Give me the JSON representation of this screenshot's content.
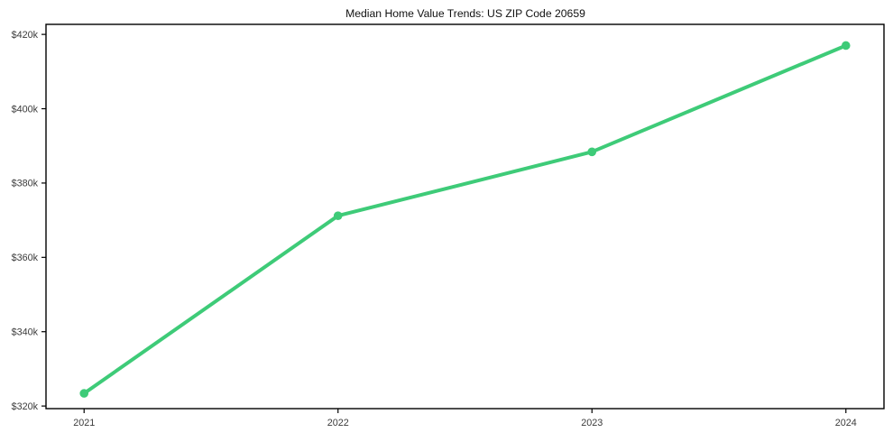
{
  "page": {
    "background_color": "#ffffff"
  },
  "chart_data": {
    "type": "line",
    "title": "Median Home Value Trends: US ZIP Code 20659",
    "xlabel": "",
    "ylabel": "",
    "x": [
      2021,
      2022,
      2023,
      2024
    ],
    "x_tick_labels": [
      "2021",
      "2022",
      "2023",
      "2024"
    ],
    "values": [
      323400,
      371200,
      388400,
      417000
    ],
    "y_tick_values": [
      320000,
      340000,
      360000,
      380000,
      400000,
      420000
    ],
    "y_tick_labels": [
      "$320k",
      "$340k",
      "$360k",
      "$380k",
      "$400k",
      "$420k"
    ],
    "xlim": [
      2020.85,
      2024.15
    ],
    "ylim": [
      319300,
      422700
    ],
    "grid": false,
    "legend_position": "none",
    "line_color": "#3ecb78",
    "marker": "circle",
    "marker_color": "#3ecb78",
    "axis_color": "#000000",
    "tick_label_color": "#3b3b3b",
    "title_color": "#111111"
  }
}
